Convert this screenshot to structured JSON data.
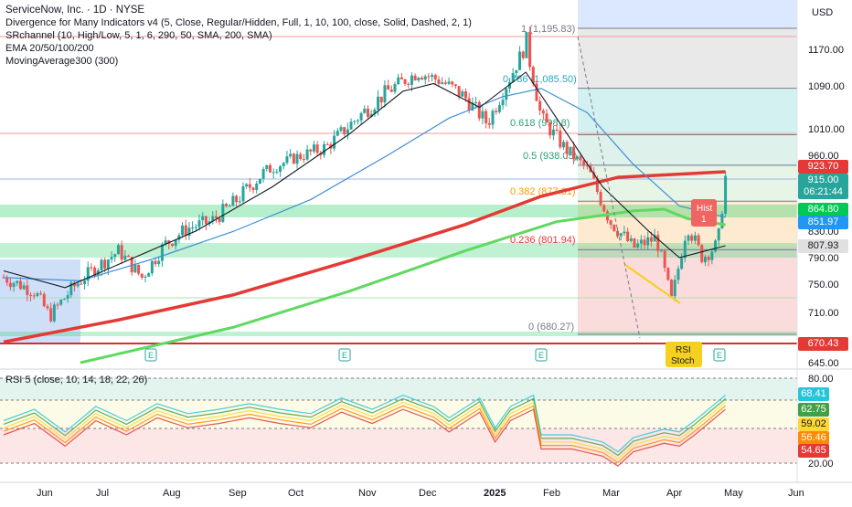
{
  "header": {
    "title": "ServiceNow, Inc. · 1D · NYSE",
    "indicators": [
      "Divergence for Many Indicators v4 (5, Close, Regular/Hidden, Full, 1, 10, 100, close, Solid, Dashed, 2, 1)",
      "SRchannel (10, High/Low, 5, 1, 6, 290, 50, SMA, 200, SMA)",
      "EMA 20/50/100/200",
      "MovingAverage300 (300)"
    ],
    "currency": "USD"
  },
  "rsi_panel": {
    "label": "RSI 5 (close, 10, 14, 18, 22, 26)"
  },
  "price_tags": [
    {
      "value": "923.70",
      "color": "#e53935",
      "dark": false
    },
    {
      "value": "915.00",
      "color": "#26a69a",
      "dark": false
    },
    {
      "value": "06:21:44",
      "color": "#26a69a",
      "dark": false
    },
    {
      "value": "864.80",
      "color": "#00c853",
      "dark": false
    },
    {
      "value": "851.97",
      "color": "#2196f3",
      "dark": false
    },
    {
      "value": "807.93",
      "color": "#e0e0e0",
      "dark": true
    },
    {
      "value": "670.43",
      "color": "#e53935",
      "dark": false
    }
  ],
  "rsi_tags": [
    {
      "value": "68.41",
      "color": "#26c6da"
    },
    {
      "value": "62.75",
      "color": "#43a047"
    },
    {
      "value": "59.02",
      "color": "#fdd835"
    },
    {
      "value": "56.46",
      "color": "#fb8c00"
    },
    {
      "value": "54.65",
      "color": "#e53935"
    }
  ],
  "annotations": {
    "hist": "Hist\n1",
    "rsi_stoch": "RSI\nStoch",
    "earnings": "E"
  },
  "chart_data": {
    "type": "candlestick",
    "title": "ServiceNow, Inc. · 1D · NYSE",
    "ylabel": "USD",
    "ylim": [
      630,
      1215
    ],
    "price_axis_ticks": [
      1170,
      1090,
      1010,
      960,
      830,
      790,
      750,
      710,
      645
    ],
    "x_ticks": [
      "Jun",
      "Jul",
      "Aug",
      "Sep",
      "Oct",
      "Nov",
      "Dec",
      "2025",
      "Feb",
      "Mar",
      "Apr",
      "May",
      "Jun"
    ],
    "fibonacci": [
      {
        "level": "1",
        "price": 1195.83
      },
      {
        "level": "0.786",
        "price": 1085.5
      },
      {
        "level": "0.618",
        "price": 998.8
      },
      {
        "level": "0.5",
        "price": 938.05
      },
      {
        "level": "0.382",
        "price": 877.31
      },
      {
        "level": "0.236",
        "price": 801.94
      },
      {
        "level": "0",
        "price": 680.27
      }
    ],
    "fib_labels": [
      "1 (1,195.83)",
      "0.786 (1,085.50)",
      "0.618 (998.8)",
      "0.5 (938.05)",
      "0.382 (877.31)",
      "0.236 (801.94)",
      "0 (680.27)"
    ],
    "support_resistance_zones": [
      [
        855,
        875
      ],
      [
        790,
        815
      ],
      [
        690,
        700
      ]
    ],
    "close_series": [
      {
        "t": 0,
        "p": 760
      },
      {
        "t": 0.04,
        "p": 740
      },
      {
        "t": 0.06,
        "p": 705
      },
      {
        "t": 0.09,
        "p": 745
      },
      {
        "t": 0.12,
        "p": 775
      },
      {
        "t": 0.15,
        "p": 800
      },
      {
        "t": 0.18,
        "p": 760
      },
      {
        "t": 0.21,
        "p": 810
      },
      {
        "t": 0.24,
        "p": 835
      },
      {
        "t": 0.27,
        "p": 845
      },
      {
        "t": 0.3,
        "p": 875
      },
      {
        "t": 0.34,
        "p": 925
      },
      {
        "t": 0.38,
        "p": 955
      },
      {
        "t": 0.42,
        "p": 975
      },
      {
        "t": 0.46,
        "p": 1030
      },
      {
        "t": 0.5,
        "p": 1080
      },
      {
        "t": 0.54,
        "p": 1120
      },
      {
        "t": 0.57,
        "p": 1100
      },
      {
        "t": 0.6,
        "p": 1070
      },
      {
        "t": 0.63,
        "p": 1020
      },
      {
        "t": 0.66,
        "p": 1110
      },
      {
        "t": 0.68,
        "p": 1180
      },
      {
        "t": 0.7,
        "p": 1030
      },
      {
        "t": 0.73,
        "p": 975
      },
      {
        "t": 0.76,
        "p": 930
      },
      {
        "t": 0.79,
        "p": 845
      },
      {
        "t": 0.82,
        "p": 805
      },
      {
        "t": 0.85,
        "p": 820
      },
      {
        "t": 0.87,
        "p": 725
      },
      {
        "t": 0.89,
        "p": 840
      },
      {
        "t": 0.91,
        "p": 790
      },
      {
        "t": 0.93,
        "p": 810
      },
      {
        "t": 0.94,
        "p": 915
      }
    ],
    "ema20_last": 807.93,
    "ema50_last": 851.97,
    "sma200_last": 864.8,
    "ma300_last": 923.7,
    "last_price": 915.0,
    "rsi_series": {
      "ylim": [
        15,
        85
      ],
      "ticks": [
        80.0,
        20.0
      ],
      "values_last": [
        68.41,
        62.75,
        59.02,
        56.46,
        54.65
      ]
    }
  }
}
